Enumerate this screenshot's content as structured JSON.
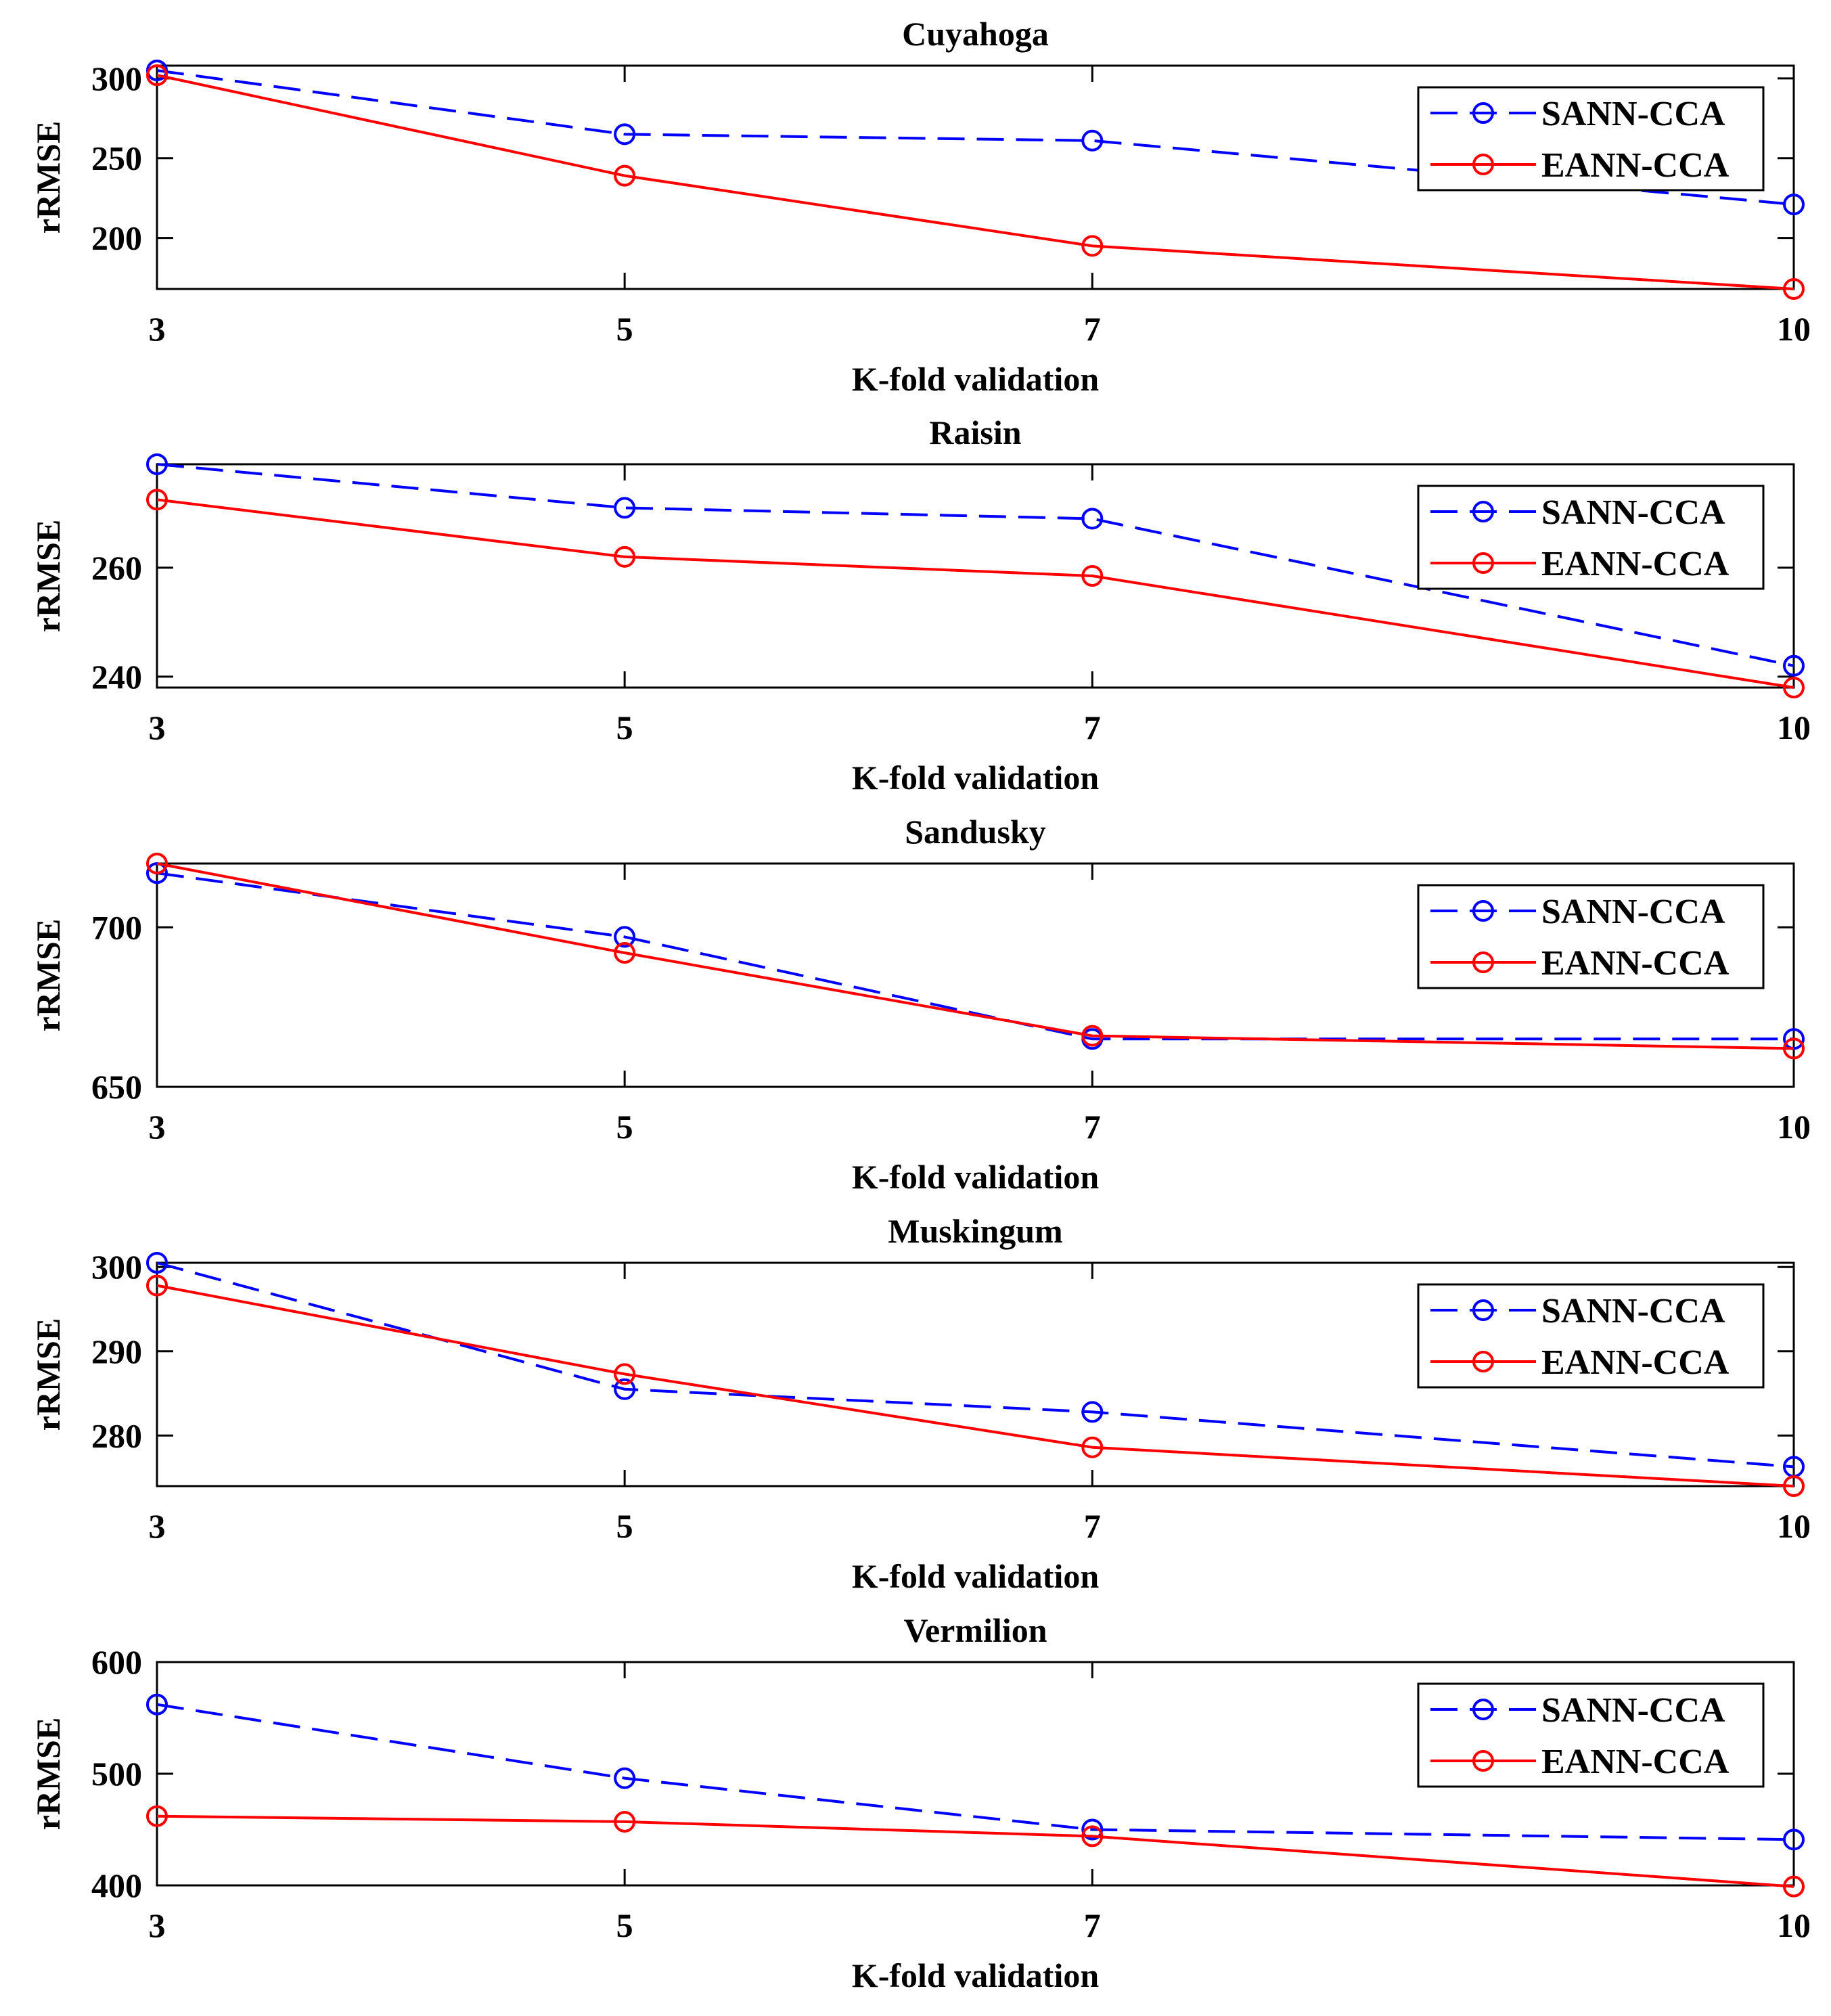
{
  "chart_data": [
    {
      "type": "line",
      "title": "Cuyahoga",
      "xlabel": "K-fold validation",
      "ylabel": "rRMSE",
      "x": [
        3,
        5,
        7,
        10
      ],
      "xticks": [
        "3",
        "5",
        "7",
        "10"
      ],
      "ylim": [
        168,
        308
      ],
      "yticks": [
        200,
        250,
        300
      ],
      "ytick_labels": [
        "200",
        "250",
        "300"
      ],
      "legend_position": "top-right",
      "series": [
        {
          "name": "SANN-CCA",
          "values": [
            305,
            265,
            261,
            221
          ],
          "color": "#0000ff",
          "line_style": "dashed",
          "marker": "circle"
        },
        {
          "name": "EANN-CCA",
          "values": [
            302,
            239,
            195,
            168
          ],
          "color": "#ff0000",
          "line_style": "solid",
          "marker": "circle"
        }
      ]
    },
    {
      "type": "line",
      "title": "Raisin",
      "xlabel": "K-fold validation",
      "ylabel": "rRMSE",
      "x": [
        3,
        5,
        7,
        10
      ],
      "xticks": [
        "3",
        "5",
        "7",
        "10"
      ],
      "ylim": [
        238,
        279
      ],
      "yticks": [
        240,
        260
      ],
      "ytick_labels": [
        "240",
        "260"
      ],
      "legend_position": "top-right",
      "series": [
        {
          "name": "SANN-CCA",
          "values": [
            279,
            271,
            269,
            242
          ],
          "color": "#0000ff",
          "line_style": "dashed",
          "marker": "circle"
        },
        {
          "name": "EANN-CCA",
          "values": [
            272.5,
            262,
            258.5,
            238
          ],
          "color": "#ff0000",
          "line_style": "solid",
          "marker": "circle"
        }
      ]
    },
    {
      "type": "line",
      "title": "Sandusky",
      "xlabel": "K-fold validation",
      "ylabel": "rRMSE",
      "x": [
        3,
        5,
        7,
        10
      ],
      "xticks": [
        "3",
        "5",
        "7",
        "10"
      ],
      "ylim": [
        650,
        720
      ],
      "yticks": [
        650,
        700
      ],
      "ytick_labels": [
        "650",
        "700"
      ],
      "legend_position": "top-right",
      "series": [
        {
          "name": "SANN-CCA",
          "values": [
            717,
            697,
            665,
            665
          ],
          "color": "#0000ff",
          "line_style": "dashed",
          "marker": "circle"
        },
        {
          "name": "EANN-CCA",
          "values": [
            720,
            692,
            666,
            662
          ],
          "color": "#ff0000",
          "line_style": "solid",
          "marker": "circle"
        }
      ]
    },
    {
      "type": "line",
      "title": "Muskingum",
      "xlabel": "K-fold validation",
      "ylabel": "rRMSE",
      "x": [
        3,
        5,
        7,
        10
      ],
      "xticks": [
        "3",
        "5",
        "7",
        "10"
      ],
      "ylim": [
        274,
        300.5
      ],
      "yticks": [
        280,
        290,
        300
      ],
      "ytick_labels": [
        "280",
        "290",
        "300"
      ],
      "legend_position": "top-right",
      "series": [
        {
          "name": "SANN-CCA",
          "values": [
            300.5,
            285.5,
            282.8,
            276.3
          ],
          "color": "#0000ff",
          "line_style": "dashed",
          "marker": "circle"
        },
        {
          "name": "EANN-CCA",
          "values": [
            297.8,
            287.3,
            278.6,
            274
          ],
          "color": "#ff0000",
          "line_style": "solid",
          "marker": "circle"
        }
      ]
    },
    {
      "type": "line",
      "title": "Vermilion",
      "xlabel": "K-fold validation",
      "ylabel": "rRMSE",
      "x": [
        3,
        5,
        7,
        10
      ],
      "xticks": [
        "3",
        "5",
        "7",
        "10"
      ],
      "ylim": [
        400,
        600
      ],
      "yticks": [
        400,
        500,
        600
      ],
      "ytick_labels": [
        "400",
        "500",
        "600"
      ],
      "legend_position": "top-right",
      "series": [
        {
          "name": "SANN-CCA",
          "values": [
            562,
            496,
            450,
            441
          ],
          "color": "#0000ff",
          "line_style": "dashed",
          "marker": "circle"
        },
        {
          "name": "EANN-CCA",
          "values": [
            462,
            457,
            444,
            399
          ],
          "color": "#ff0000",
          "line_style": "solid",
          "marker": "circle"
        }
      ]
    }
  ]
}
